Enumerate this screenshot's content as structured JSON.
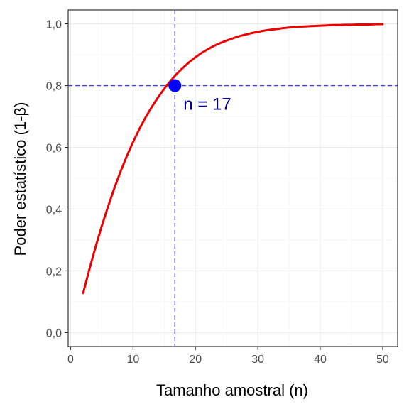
{
  "chart_data": {
    "type": "line",
    "title": "",
    "xlabel": "Tamanho amostral (n)",
    "ylabel": "Poder estatístico (1-β)",
    "xlim": [
      -0.4,
      52.4
    ],
    "ylim": [
      -0.045,
      1.045
    ],
    "x_ticks": [
      0,
      10,
      20,
      30,
      40,
      50
    ],
    "x_tick_labels": [
      "0",
      "10",
      "20",
      "30",
      "40",
      "50"
    ],
    "y_ticks": [
      0,
      0.2,
      0.4,
      0.6,
      0.8,
      1.0
    ],
    "y_tick_labels": [
      "0,0",
      "0,2",
      "0,4",
      "0,6",
      "0,8",
      "1,0"
    ],
    "grid": true,
    "series": [
      {
        "color": "#ee0000",
        "x": [
          2,
          3,
          4,
          5,
          6,
          7,
          8,
          9,
          10,
          11,
          12,
          13,
          14,
          15,
          16,
          17,
          18,
          19,
          20,
          21,
          22,
          23,
          24,
          25,
          26,
          27,
          28,
          29,
          30,
          31,
          32,
          33,
          34,
          35,
          36,
          37,
          38,
          39,
          40,
          41,
          42,
          43,
          44,
          45,
          46,
          47,
          48,
          49,
          50
        ],
        "y": [
          0.128,
          0.205,
          0.278,
          0.346,
          0.409,
          0.468,
          0.522,
          0.572,
          0.617,
          0.659,
          0.697,
          0.731,
          0.762,
          0.79,
          0.815,
          0.838,
          0.858,
          0.876,
          0.892,
          0.906,
          0.918,
          0.929,
          0.938,
          0.946,
          0.953,
          0.96,
          0.965,
          0.97,
          0.974,
          0.978,
          0.981,
          0.983,
          0.986,
          0.988,
          0.99,
          0.991,
          0.992,
          0.993,
          0.994,
          0.995,
          0.996,
          0.996,
          0.997,
          0.997,
          0.998,
          0.998,
          0.998,
          0.999,
          0.999
        ]
      }
    ],
    "reference_lines": {
      "x": 16.7,
      "y": 0.8,
      "color": "#4444cc",
      "style": "dashed"
    },
    "highlight_point": {
      "x": 16.7,
      "y": 0.8,
      "color": "#0000ff",
      "label": "n = 17",
      "label_color": "#00008b"
    }
  }
}
